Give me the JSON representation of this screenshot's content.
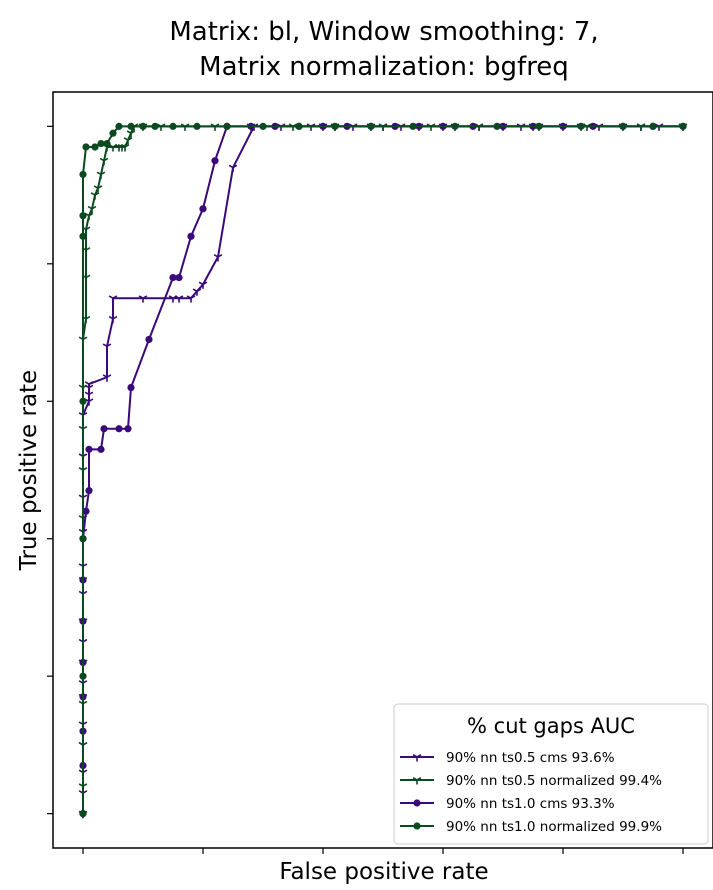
{
  "chart_data": {
    "type": "line",
    "title_line1": "Matrix: bl, Window smoothing: 7,",
    "title_line2": "Matrix normalization: bgfreq",
    "xlabel": "False positive rate",
    "ylabel": "True positive rate",
    "xlim": [
      -0.05,
      1.05
    ],
    "ylim": [
      -0.05,
      1.05
    ],
    "x_ticks": [
      0,
      0.2,
      0.4,
      0.6,
      0.8,
      1.0
    ],
    "y_ticks": [
      0,
      0.2,
      0.4,
      0.6,
      0.8,
      1.0
    ],
    "tick_labels_visible": false,
    "grid": false,
    "legend": {
      "title": "% cut gaps   AUC",
      "placement": "lower-right"
    },
    "series": [
      {
        "name": "90% nn ts0.5 cms 93.6%",
        "color": "#3a0a7a",
        "marker": "tri",
        "points": [
          [
            0.0,
            0.0
          ],
          [
            0.0,
            0.03
          ],
          [
            0.0,
            0.06
          ],
          [
            0.0,
            0.1
          ],
          [
            0.0,
            0.13
          ],
          [
            0.0,
            0.17
          ],
          [
            0.0,
            0.19
          ],
          [
            0.0,
            0.22
          ],
          [
            0.0,
            0.25
          ],
          [
            0.0,
            0.28
          ],
          [
            0.0,
            0.32
          ],
          [
            0.0,
            0.36
          ],
          [
            0.0,
            0.41
          ],
          [
            0.0,
            0.46
          ],
          [
            0.0,
            0.52
          ],
          [
            0.0,
            0.58
          ],
          [
            0.01,
            0.6
          ],
          [
            0.01,
            0.61
          ],
          [
            0.01,
            0.62
          ],
          [
            0.01,
            0.625
          ],
          [
            0.04,
            0.635
          ],
          [
            0.04,
            0.68
          ],
          [
            0.05,
            0.72
          ],
          [
            0.05,
            0.75
          ],
          [
            0.1,
            0.75
          ],
          [
            0.15,
            0.75
          ],
          [
            0.16,
            0.75
          ],
          [
            0.18,
            0.75
          ],
          [
            0.19,
            0.76
          ],
          [
            0.2,
            0.77
          ],
          [
            0.225,
            0.81
          ],
          [
            0.25,
            0.94
          ],
          [
            0.285,
            1.0
          ],
          [
            0.33,
            1.0
          ],
          [
            0.38,
            1.0
          ],
          [
            0.4,
            1.0
          ],
          [
            0.42,
            1.0
          ],
          [
            0.45,
            1.0
          ],
          [
            0.48,
            1.0
          ],
          [
            0.5,
            1.0
          ],
          [
            0.53,
            1.0
          ],
          [
            0.56,
            1.0
          ],
          [
            0.6,
            1.0
          ],
          [
            0.62,
            1.0
          ],
          [
            0.66,
            1.0
          ],
          [
            0.7,
            1.0
          ],
          [
            0.73,
            1.0
          ],
          [
            0.76,
            1.0
          ],
          [
            0.8,
            1.0
          ],
          [
            0.83,
            1.0
          ],
          [
            0.86,
            1.0
          ],
          [
            0.9,
            1.0
          ],
          [
            0.93,
            1.0
          ],
          [
            0.96,
            1.0
          ],
          [
            1.0,
            1.0
          ]
        ]
      },
      {
        "name": "90% nn ts0.5 normalized 99.4%",
        "color": "#0a4a1e",
        "marker": "tri",
        "points": [
          [
            0.0,
            0.0
          ],
          [
            0.0,
            0.04
          ],
          [
            0.0,
            0.1
          ],
          [
            0.0,
            0.16
          ],
          [
            0.0,
            0.22
          ],
          [
            0.0,
            0.28
          ],
          [
            0.0,
            0.34
          ],
          [
            0.0,
            0.43
          ],
          [
            0.0,
            0.5
          ],
          [
            0.0,
            0.56
          ],
          [
            0.0,
            0.62
          ],
          [
            0.0,
            0.69
          ],
          [
            0.005,
            0.72
          ],
          [
            0.005,
            0.78
          ],
          [
            0.005,
            0.82
          ],
          [
            0.005,
            0.85
          ],
          [
            0.01,
            0.87
          ],
          [
            0.015,
            0.88
          ],
          [
            0.02,
            0.9
          ],
          [
            0.025,
            0.91
          ],
          [
            0.03,
            0.93
          ],
          [
            0.035,
            0.95
          ],
          [
            0.04,
            0.97
          ],
          [
            0.05,
            0.97
          ],
          [
            0.06,
            0.97
          ],
          [
            0.065,
            0.97
          ],
          [
            0.07,
            0.97
          ],
          [
            0.075,
            0.98
          ],
          [
            0.08,
            0.99
          ],
          [
            0.085,
            1.0
          ],
          [
            0.1,
            1.0
          ],
          [
            0.13,
            1.0
          ],
          [
            0.17,
            1.0
          ],
          [
            0.22,
            1.0
          ],
          [
            0.28,
            1.0
          ],
          [
            0.35,
            1.0
          ],
          [
            0.42,
            1.0
          ],
          [
            0.5,
            1.0
          ],
          [
            0.58,
            1.0
          ],
          [
            0.66,
            1.0
          ],
          [
            0.75,
            1.0
          ],
          [
            0.84,
            1.0
          ],
          [
            0.93,
            1.0
          ],
          [
            1.0,
            1.0
          ]
        ]
      },
      {
        "name": "90% nn ts1.0 cms 93.3%",
        "color": "#3a0a7a",
        "marker": "dot",
        "points": [
          [
            0.0,
            0.0
          ],
          [
            0.0,
            0.07
          ],
          [
            0.0,
            0.12
          ],
          [
            0.0,
            0.17
          ],
          [
            0.0,
            0.22
          ],
          [
            0.0,
            0.28
          ],
          [
            0.0,
            0.34
          ],
          [
            0.0,
            0.4
          ],
          [
            0.005,
            0.44
          ],
          [
            0.01,
            0.47
          ],
          [
            0.01,
            0.53
          ],
          [
            0.03,
            0.53
          ],
          [
            0.035,
            0.56
          ],
          [
            0.06,
            0.56
          ],
          [
            0.075,
            0.56
          ],
          [
            0.08,
            0.62
          ],
          [
            0.11,
            0.69
          ],
          [
            0.15,
            0.78
          ],
          [
            0.16,
            0.78
          ],
          [
            0.18,
            0.84
          ],
          [
            0.2,
            0.88
          ],
          [
            0.22,
            0.95
          ],
          [
            0.24,
            1.0
          ],
          [
            0.28,
            1.0
          ],
          [
            0.32,
            1.0
          ],
          [
            0.36,
            1.0
          ],
          [
            0.4,
            1.0
          ],
          [
            0.44,
            1.0
          ],
          [
            0.48,
            1.0
          ],
          [
            0.52,
            1.0
          ],
          [
            0.56,
            1.0
          ],
          [
            0.6,
            1.0
          ],
          [
            0.65,
            1.0
          ],
          [
            0.7,
            1.0
          ],
          [
            0.75,
            1.0
          ],
          [
            0.8,
            1.0
          ],
          [
            0.85,
            1.0
          ],
          [
            0.9,
            1.0
          ],
          [
            0.95,
            1.0
          ],
          [
            1.0,
            1.0
          ]
        ]
      },
      {
        "name": "90% nn ts1.0 normalized 99.9%",
        "color": "#0a4a1e",
        "marker": "dot",
        "points": [
          [
            0.0,
            0.0
          ],
          [
            0.0,
            0.2
          ],
          [
            0.0,
            0.4
          ],
          [
            0.0,
            0.6
          ],
          [
            0.0,
            0.84
          ],
          [
            0.0,
            0.87
          ],
          [
            0.0,
            0.93
          ],
          [
            0.005,
            0.97
          ],
          [
            0.02,
            0.97
          ],
          [
            0.03,
            0.975
          ],
          [
            0.04,
            0.975
          ],
          [
            0.05,
            0.99
          ],
          [
            0.06,
            1.0
          ],
          [
            0.08,
            1.0
          ],
          [
            0.1,
            1.0
          ],
          [
            0.12,
            1.0
          ],
          [
            0.15,
            1.0
          ],
          [
            0.19,
            1.0
          ],
          [
            0.24,
            1.0
          ],
          [
            0.3,
            1.0
          ],
          [
            0.36,
            1.0
          ],
          [
            0.42,
            1.0
          ],
          [
            0.48,
            1.0
          ],
          [
            0.55,
            1.0
          ],
          [
            0.62,
            1.0
          ],
          [
            0.69,
            1.0
          ],
          [
            0.76,
            1.0
          ],
          [
            0.83,
            1.0
          ],
          [
            0.9,
            1.0
          ],
          [
            0.95,
            1.0
          ],
          [
            1.0,
            1.0
          ]
        ]
      }
    ]
  }
}
